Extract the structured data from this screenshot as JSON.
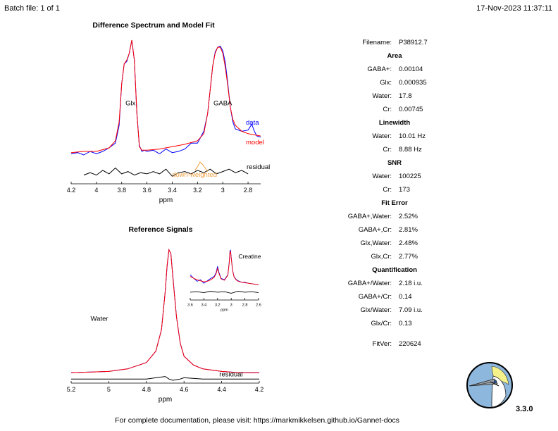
{
  "header": {
    "batch": "Batch file: 1 of 1",
    "datetime": "17-Nov-2023 11:37:11"
  },
  "footer": {
    "text": "For complete documentation, please visit: https://markmikkelsen.github.io/Gannet-docs"
  },
  "version": "3.3.0",
  "info": [
    {
      "type": "row",
      "label": "Filename:",
      "value": "P38912.7"
    },
    {
      "type": "section",
      "label": "Area"
    },
    {
      "type": "row",
      "label": "GABA+:",
      "value": "0.00104"
    },
    {
      "type": "row",
      "label": "Glx:",
      "value": "0.000935"
    },
    {
      "type": "row",
      "label": "Water:",
      "value": "17.8"
    },
    {
      "type": "row",
      "label": "Cr:",
      "value": "0.00745"
    },
    {
      "type": "section",
      "label": "Linewidth"
    },
    {
      "type": "row",
      "label": "Water:",
      "value": "10.01 Hz"
    },
    {
      "type": "row",
      "label": "Cr:",
      "value": "8.88 Hz"
    },
    {
      "type": "section",
      "label": "SNR"
    },
    {
      "type": "row",
      "label": "Water:",
      "value": "100225"
    },
    {
      "type": "row",
      "label": "Cr:",
      "value": "173"
    },
    {
      "type": "section",
      "label": "Fit Error"
    },
    {
      "type": "row",
      "label": "GABA+,Water:",
      "value": "2.52%"
    },
    {
      "type": "row",
      "label": "GABA+,Cr:",
      "value": "2.81%"
    },
    {
      "type": "row",
      "label": "Glx,Water:",
      "value": "2.48%"
    },
    {
      "type": "row",
      "label": "Glx,Cr:",
      "value": "2.77%"
    },
    {
      "type": "section",
      "label": "Quantification"
    },
    {
      "type": "row",
      "label": "GABA+/Water:",
      "value": "2.18 i.u."
    },
    {
      "type": "row",
      "label": "GABA+/Cr:",
      "value": "0.14"
    },
    {
      "type": "row",
      "label": "Glx/Water:",
      "value": "7.09 i.u."
    },
    {
      "type": "row",
      "label": "Glx/Cr:",
      "value": "0.13"
    },
    {
      "type": "gap"
    },
    {
      "type": "row",
      "label": "FitVer:",
      "value": "220624"
    }
  ],
  "colors": {
    "data": "#0000ff",
    "model": "#ff0000",
    "residual": "#000000",
    "downweighted": "#f0a040",
    "logo_bg": "#8db7dc"
  },
  "chart_data": [
    {
      "type": "line",
      "title": "Difference Spectrum and Model Fit",
      "xlabel": "ppm",
      "xlim": [
        4.2,
        2.7
      ],
      "xreverse": true,
      "xticks": [
        4.2,
        4,
        3.8,
        3.6,
        3.4,
        3.2,
        3,
        2.8
      ],
      "annotations": [
        {
          "text": "Glx",
          "x": 3.73,
          "y": 0.42
        },
        {
          "text": "GABA",
          "x": 3.0,
          "y": 0.42
        }
      ],
      "series": [
        {
          "name": "data",
          "color": "#0000ff",
          "x": [
            4.2,
            4.15,
            4.1,
            4.05,
            4.0,
            3.95,
            3.9,
            3.85,
            3.82,
            3.8,
            3.78,
            3.76,
            3.74,
            3.72,
            3.7,
            3.68,
            3.66,
            3.64,
            3.62,
            3.6,
            3.55,
            3.5,
            3.45,
            3.4,
            3.35,
            3.3,
            3.25,
            3.2,
            3.15,
            3.12,
            3.1,
            3.08,
            3.06,
            3.04,
            3.02,
            3.0,
            2.98,
            2.96,
            2.94,
            2.92,
            2.9,
            2.85,
            2.8,
            2.77,
            2.75,
            2.73,
            2.7
          ],
          "y": [
            0.01,
            0.02,
            0.0,
            0.03,
            0.01,
            0.03,
            0.06,
            0.1,
            0.25,
            0.6,
            0.77,
            0.79,
            0.86,
            0.97,
            0.8,
            0.35,
            0.08,
            0.03,
            0.04,
            0.03,
            0.04,
            0.01,
            0.05,
            0.02,
            0.03,
            0.05,
            0.1,
            0.1,
            0.2,
            0.35,
            0.55,
            0.75,
            0.87,
            0.91,
            0.92,
            0.88,
            0.78,
            0.6,
            0.4,
            0.28,
            0.22,
            0.2,
            0.21,
            0.26,
            0.2,
            0.16,
            0.15
          ]
        },
        {
          "name": "model",
          "color": "#ff0000",
          "x": [
            4.2,
            4.1,
            4.0,
            3.9,
            3.85,
            3.82,
            3.8,
            3.78,
            3.76,
            3.74,
            3.72,
            3.7,
            3.68,
            3.66,
            3.64,
            3.6,
            3.5,
            3.4,
            3.3,
            3.2,
            3.15,
            3.12,
            3.1,
            3.08,
            3.06,
            3.04,
            3.02,
            3.0,
            2.98,
            2.96,
            2.94,
            2.92,
            2.9,
            2.85,
            2.8,
            2.75,
            2.7
          ],
          "y": [
            0.02,
            0.03,
            0.03,
            0.06,
            0.12,
            0.28,
            0.6,
            0.77,
            0.8,
            0.86,
            0.97,
            0.8,
            0.35,
            0.07,
            0.04,
            0.04,
            0.05,
            0.07,
            0.09,
            0.12,
            0.18,
            0.35,
            0.55,
            0.75,
            0.86,
            0.91,
            0.91,
            0.86,
            0.74,
            0.58,
            0.4,
            0.3,
            0.25,
            0.2,
            0.18,
            0.17,
            0.16
          ]
        },
        {
          "name": "residual",
          "color": "#000000",
          "x": [
            4.1,
            4.05,
            4.0,
            3.95,
            3.9,
            3.85,
            3.8,
            3.75,
            3.7,
            3.65,
            3.6,
            3.55,
            3.5,
            3.45,
            3.4,
            3.35,
            3.3,
            3.25,
            3.2,
            3.15,
            3.1,
            3.05,
            3.0,
            2.95,
            2.9,
            2.85,
            2.8
          ],
          "y": [
            -0.17,
            -0.15,
            -0.17,
            -0.13,
            -0.16,
            -0.11,
            -0.16,
            -0.14,
            -0.17,
            -0.15,
            -0.16,
            -0.14,
            -0.16,
            -0.12,
            -0.18,
            -0.15,
            -0.14,
            -0.16,
            -0.13,
            -0.15,
            -0.12,
            -0.16,
            -0.14,
            -0.12,
            -0.15,
            -0.13,
            -0.16
          ]
        },
        {
          "name": "down-weighted",
          "color": "#f0a040",
          "x": [
            3.22,
            3.2,
            3.18,
            3.16,
            3.14,
            3.12
          ],
          "y": [
            -0.13,
            -0.1,
            -0.06,
            -0.08,
            -0.11,
            -0.14
          ]
        }
      ]
    },
    {
      "type": "line",
      "title": "Reference Signals",
      "xlabel": "ppm",
      "xlim": [
        5.2,
        4.2
      ],
      "xreverse": true,
      "xticks": [
        5.2,
        5,
        4.8,
        4.6,
        4.4,
        4.2
      ],
      "annotations": [
        {
          "text": "Water",
          "x": 5.05,
          "y": 0.42
        },
        {
          "text": "residual",
          "x": 4.35,
          "y": -0.02
        }
      ],
      "series": [
        {
          "name": "data",
          "color": "#0000ff",
          "x": [
            5.2,
            5.0,
            4.9,
            4.8,
            4.75,
            4.72,
            4.7,
            4.69,
            4.68,
            4.67,
            4.66,
            4.64,
            4.62,
            4.6,
            4.55,
            4.5,
            4.4,
            4.3,
            4.2
          ],
          "y": [
            0.01,
            0.02,
            0.04,
            0.09,
            0.18,
            0.35,
            0.65,
            0.85,
            0.98,
            0.95,
            0.78,
            0.45,
            0.24,
            0.14,
            0.07,
            0.04,
            0.02,
            0.01,
            0.01
          ]
        },
        {
          "name": "model",
          "color": "#ff0000",
          "x": [
            5.2,
            5.0,
            4.9,
            4.8,
            4.75,
            4.72,
            4.7,
            4.69,
            4.68,
            4.67,
            4.66,
            4.64,
            4.62,
            4.6,
            4.55,
            4.5,
            4.4,
            4.3,
            4.2
          ],
          "y": [
            0.01,
            0.02,
            0.04,
            0.09,
            0.18,
            0.35,
            0.65,
            0.86,
            0.98,
            0.95,
            0.77,
            0.45,
            0.24,
            0.14,
            0.07,
            0.04,
            0.02,
            0.01,
            0.01
          ]
        },
        {
          "name": "residual",
          "color": "#000000",
          "x": [
            5.2,
            5.0,
            4.9,
            4.8,
            4.75,
            4.7,
            4.68,
            4.66,
            4.62,
            4.6,
            4.5,
            4.4,
            4.3,
            4.2
          ],
          "y": [
            -0.04,
            -0.04,
            -0.04,
            -0.04,
            -0.03,
            -0.02,
            -0.04,
            -0.05,
            -0.04,
            -0.03,
            -0.04,
            -0.04,
            -0.04,
            -0.04
          ]
        }
      ]
    },
    {
      "type": "line",
      "title": "",
      "xlabel": "ppm",
      "xlim": [
        3.6,
        2.6
      ],
      "xreverse": true,
      "xticks": [
        3.6,
        3.4,
        3.2,
        3,
        2.8,
        2.6
      ],
      "annotations": [
        {
          "text": "Creatine",
          "x": 2.73,
          "y": 0.78
        }
      ],
      "series": [
        {
          "name": "data",
          "color": "#0000ff",
          "x": [
            3.6,
            3.55,
            3.5,
            3.45,
            3.4,
            3.35,
            3.3,
            3.25,
            3.22,
            3.2,
            3.18,
            3.15,
            3.1,
            3.05,
            3.03,
            3.02,
            3.01,
            3.0,
            2.98,
            2.96,
            2.93,
            2.9,
            2.85,
            2.8,
            2.75,
            2.7,
            2.65,
            2.6
          ],
          "y": [
            0.45,
            0.38,
            0.32,
            0.35,
            0.28,
            0.33,
            0.38,
            0.42,
            0.5,
            0.62,
            0.5,
            0.38,
            0.35,
            0.45,
            0.7,
            0.92,
            0.95,
            0.8,
            0.55,
            0.42,
            0.36,
            0.33,
            0.3,
            0.3,
            0.28,
            0.27,
            0.26,
            0.25
          ]
        },
        {
          "name": "model",
          "color": "#ff0000",
          "x": [
            3.6,
            3.55,
            3.5,
            3.45,
            3.4,
            3.35,
            3.3,
            3.25,
            3.22,
            3.2,
            3.18,
            3.15,
            3.1,
            3.05,
            3.03,
            3.02,
            3.01,
            3.0,
            2.98,
            2.96,
            2.93,
            2.9,
            2.85,
            2.8,
            2.75,
            2.7,
            2.65,
            2.6
          ],
          "y": [
            0.42,
            0.38,
            0.35,
            0.33,
            0.31,
            0.32,
            0.35,
            0.4,
            0.48,
            0.58,
            0.48,
            0.37,
            0.34,
            0.44,
            0.68,
            0.9,
            0.93,
            0.78,
            0.54,
            0.41,
            0.35,
            0.32,
            0.3,
            0.29,
            0.28,
            0.27,
            0.26,
            0.25
          ]
        },
        {
          "name": "residual",
          "color": "#000000",
          "x": [
            3.6,
            3.5,
            3.4,
            3.3,
            3.2,
            3.1,
            3.0,
            2.9,
            2.8,
            2.7,
            2.6
          ],
          "y": [
            0.1,
            0.11,
            0.09,
            0.12,
            0.1,
            0.11,
            0.08,
            0.12,
            0.1,
            0.11,
            0.09
          ]
        }
      ]
    }
  ]
}
